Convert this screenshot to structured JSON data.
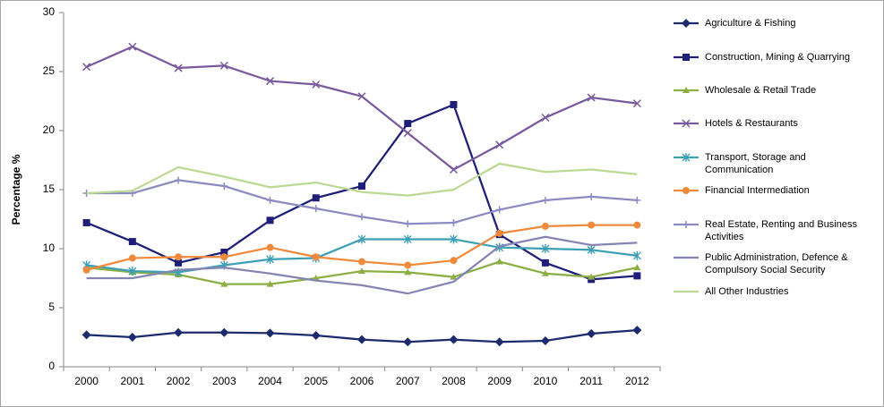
{
  "chart_data": {
    "type": "line",
    "y_label": "Percentage %",
    "categories": [
      "2000",
      "2001",
      "2002",
      "2003",
      "2004",
      "2005",
      "2006",
      "2007",
      "2008",
      "2009",
      "2010",
      "2011",
      "2012"
    ],
    "ylim": [
      0,
      30
    ],
    "yticks": [
      0,
      5,
      10,
      15,
      20,
      25,
      30
    ],
    "grid": false,
    "legend": "right",
    "series": [
      {
        "name": "Agriculture & Fishing",
        "color": "#1c2a6e",
        "marker": "diamond",
        "values": [
          2.7,
          2.5,
          2.9,
          2.9,
          2.85,
          2.65,
          2.3,
          2.1,
          2.3,
          2.1,
          2.2,
          2.8,
          3.1
        ]
      },
      {
        "name": "Construction, Mining & Quarrying",
        "color": "#1f1f7a",
        "marker": "square",
        "values": [
          12.2,
          10.6,
          8.8,
          9.7,
          12.4,
          14.3,
          15.3,
          20.6,
          22.2,
          11.2,
          8.8,
          7.4,
          7.7
        ]
      },
      {
        "name": "Wholesale & Retail Trade",
        "color": "#8cae42",
        "marker": "triangle",
        "values": [
          8.4,
          8.0,
          7.8,
          7.0,
          7.0,
          7.5,
          8.1,
          8.0,
          7.6,
          8.9,
          7.9,
          7.6,
          8.4
        ]
      },
      {
        "name": "Hotels & Restaurants",
        "color": "#7a5a9e",
        "marker": "x",
        "values": [
          25.4,
          27.1,
          25.3,
          25.5,
          24.2,
          23.9,
          22.9,
          19.8,
          16.7,
          18.8,
          21.1,
          22.8,
          22.3
        ]
      },
      {
        "name": "Transport, Storage and Communication",
        "color": "#3d9fb3",
        "marker": "asterisk",
        "values": [
          8.6,
          8.1,
          8.0,
          8.6,
          9.1,
          9.2,
          10.8,
          10.8,
          10.8,
          10.1,
          10.0,
          9.9,
          9.4
        ]
      },
      {
        "name": "Financial Intermediation",
        "color": "#ef8a3c",
        "marker": "circle",
        "values": [
          8.2,
          9.2,
          9.3,
          9.3,
          10.1,
          9.3,
          8.9,
          8.6,
          9.0,
          11.3,
          11.9,
          12.0,
          12.0
        ]
      },
      {
        "name": "Real Estate, Renting and Business Activities",
        "color": "#8b8bc2",
        "marker": "plus",
        "values": [
          14.7,
          14.7,
          15.8,
          15.3,
          14.1,
          13.4,
          12.7,
          12.1,
          12.2,
          13.3,
          14.1,
          14.4,
          14.1
        ]
      },
      {
        "name": "Public Administration, Defence & Compulsory Social Security",
        "color": "#8585b3",
        "marker": "none",
        "values": [
          7.5,
          7.5,
          8.2,
          8.4,
          7.9,
          7.3,
          6.9,
          6.2,
          7.2,
          10.2,
          11.0,
          10.3,
          10.5
        ]
      },
      {
        "name": "All Other Industries",
        "color": "#bcd994",
        "marker": "none",
        "values": [
          14.7,
          14.9,
          16.9,
          16.1,
          15.2,
          15.6,
          14.8,
          14.5,
          15.0,
          17.2,
          16.5,
          16.7,
          16.3
        ]
      }
    ]
  }
}
